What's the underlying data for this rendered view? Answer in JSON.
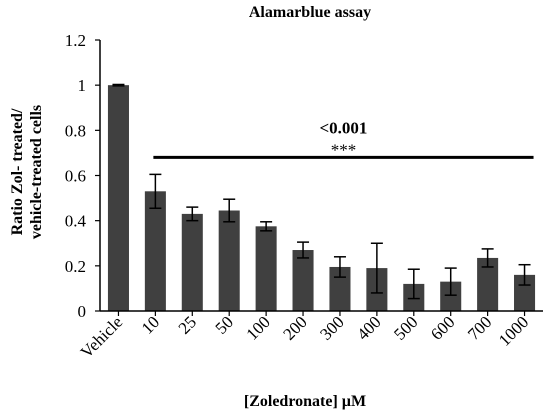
{
  "chart_data": {
    "type": "bar",
    "title": "Alamarblue assay",
    "ylabel_line1": "Ratio Zol- treated/",
    "ylabel_line2": "vehicle-treated cells",
    "xlabel": "[Zoledronate] µM",
    "categories": [
      "Vehicle",
      "10",
      "25",
      "50",
      "100",
      "200",
      "300",
      "400",
      "500",
      "600",
      "700",
      "1000"
    ],
    "values": [
      1.0,
      0.53,
      0.43,
      0.445,
      0.375,
      0.27,
      0.195,
      0.19,
      0.12,
      0.13,
      0.235,
      0.16
    ],
    "errors": [
      0.003,
      0.075,
      0.03,
      0.05,
      0.02,
      0.035,
      0.045,
      0.11,
      0.065,
      0.06,
      0.04,
      0.045
    ],
    "ylim": [
      0,
      1.2
    ],
    "yticks": [
      "0",
      "0.2",
      "0.4",
      "0.6",
      "0.8",
      "1",
      "1.2"
    ],
    "ytick_values": [
      0,
      0.2,
      0.4,
      0.6,
      0.8,
      1.0,
      1.2
    ],
    "annotation": {
      "pvalue": "<0.001",
      "stars": "***",
      "bracket_from": "10",
      "bracket_to": "1000",
      "bracket_y": 0.68
    },
    "bar_color": "#404040",
    "grid": false,
    "legend": "none"
  }
}
